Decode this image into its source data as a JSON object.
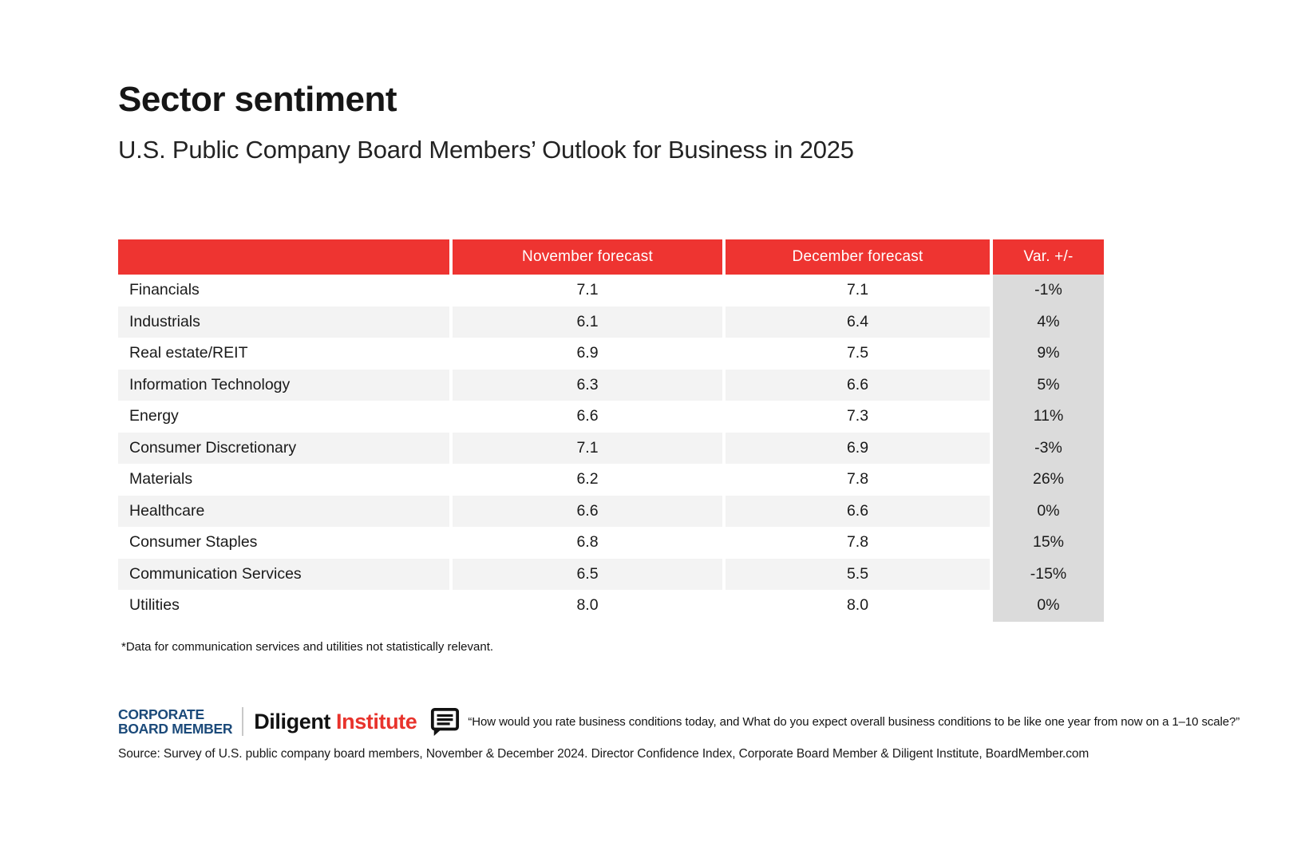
{
  "page": {
    "title": "Sector sentiment",
    "subtitle": "U.S. Public Company Board Members’ Outlook for Business in 2025"
  },
  "table": {
    "headers": [
      "",
      "November forecast",
      "December forecast",
      "Var. +/-"
    ],
    "rows": [
      {
        "sector": "Financials",
        "nov": "7.1",
        "dec": "7.1",
        "var": "-1%"
      },
      {
        "sector": "Industrials",
        "nov": "6.1",
        "dec": "6.4",
        "var": "4%"
      },
      {
        "sector": "Real estate/REIT",
        "nov": "6.9",
        "dec": "7.5",
        "var": "9%"
      },
      {
        "sector": "Information Technology",
        "nov": "6.3",
        "dec": "6.6",
        "var": "5%"
      },
      {
        "sector": "Energy",
        "nov": "6.6",
        "dec": "7.3",
        "var": "11%"
      },
      {
        "sector": "Consumer Discretionary",
        "nov": "7.1",
        "dec": "6.9",
        "var": "-3%"
      },
      {
        "sector": "Materials",
        "nov": "6.2",
        "dec": "7.8",
        "var": "26%"
      },
      {
        "sector": "Healthcare",
        "nov": "6.6",
        "dec": "6.6",
        "var": "0%"
      },
      {
        "sector": "Consumer Staples",
        "nov": "6.8",
        "dec": "7.8",
        "var": "15%"
      },
      {
        "sector": "Communication Services",
        "nov": "6.5",
        "dec": "5.5",
        "var": "-15%"
      },
      {
        "sector": "Utilities",
        "nov": "8.0",
        "dec": "8.0",
        "var": "0%"
      }
    ]
  },
  "footnote": "*Data for communication services and utilities not statistically relevant.",
  "branding": {
    "corporate_line1": "CORPORATE",
    "corporate_line2": "BOARD MEMBER",
    "diligent_word": "Diligent",
    "institute_word": "Institute",
    "quote": "“How would you rate business conditions today, and What do you expect overall business conditions to be like one year from now on a 1–10 scale?”"
  },
  "source": "Source: Survey of U.S. public company board members, November & December 2024. Director Confidence Index, Corporate Board Member & Diligent Institute, BoardMember.com",
  "colors": {
    "header_red": "#ee3431",
    "stripe_gray": "#f3f3f3",
    "var_column_gray": "#dbdbdb",
    "cbm_navy": "#1b4a7a",
    "institute_red": "#e8332c"
  },
  "chart_data": {
    "type": "table",
    "title": "Sector sentiment",
    "subtitle": "U.S. Public Company Board Members’ Outlook for Business in 2025",
    "categories": [
      "Financials",
      "Industrials",
      "Real estate/REIT",
      "Information Technology",
      "Energy",
      "Consumer Discretionary",
      "Materials",
      "Healthcare",
      "Consumer Staples",
      "Communication Services",
      "Utilities"
    ],
    "series": [
      {
        "name": "November forecast",
        "values": [
          7.1,
          6.1,
          6.9,
          6.3,
          6.6,
          7.1,
          6.2,
          6.6,
          6.8,
          6.5,
          8.0
        ]
      },
      {
        "name": "December forecast",
        "values": [
          7.1,
          6.4,
          7.5,
          6.6,
          7.3,
          6.9,
          7.8,
          6.6,
          7.8,
          5.5,
          8.0
        ]
      },
      {
        "name": "Var. +/-",
        "values": [
          "-1%",
          "4%",
          "9%",
          "5%",
          "11%",
          "-3%",
          "26%",
          "0%",
          "15%",
          "-15%",
          "0%"
        ]
      }
    ],
    "legend_position": "none",
    "grid": false
  }
}
